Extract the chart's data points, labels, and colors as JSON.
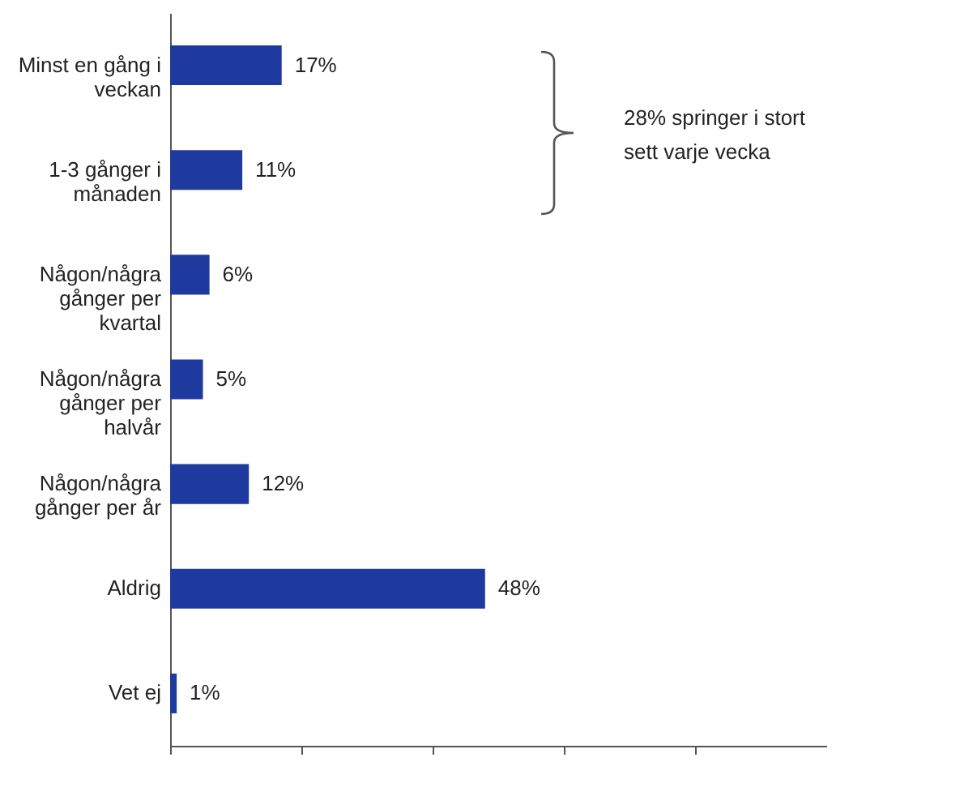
{
  "chart_data": {
    "type": "bar",
    "orientation": "horizontal",
    "categories": [
      "Minst en gång i veckan",
      "1-3 gånger i månaden",
      "Någon/några gånger per kvartal",
      "Någon/några gånger per halvår",
      "Någon/några gånger per år",
      "Aldrig",
      "Vet ej"
    ],
    "values": [
      17,
      11,
      6,
      5,
      12,
      48,
      1
    ],
    "value_labels": [
      "17%",
      "11%",
      "6%",
      "5%",
      "12%",
      "48%",
      "1%"
    ],
    "color": "#1f3a9e",
    "xlim": [
      0,
      100
    ],
    "xticks": [
      {
        "value": 0,
        "label": null
      },
      {
        "value": 20,
        "label": null
      },
      {
        "value": 40,
        "label": null
      },
      {
        "value": 60,
        "label": null
      },
      {
        "value": 80,
        "label": null
      }
    ],
    "tick_labels": "y",
    "grid": false,
    "annotations": [
      "28% springer i stort sett varje vecka"
    ]
  }
}
